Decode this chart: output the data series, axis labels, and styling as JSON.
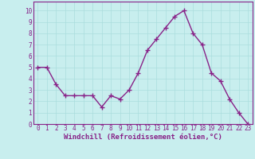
{
  "x": [
    0,
    1,
    2,
    3,
    4,
    5,
    6,
    7,
    8,
    9,
    10,
    11,
    12,
    13,
    14,
    15,
    16,
    17,
    18,
    19,
    20,
    21,
    22,
    23
  ],
  "y": [
    5,
    5,
    3.5,
    2.5,
    2.5,
    2.5,
    2.5,
    1.5,
    2.5,
    2.2,
    3,
    4.5,
    6.5,
    7.5,
    8.5,
    9.5,
    10,
    8,
    7,
    4.5,
    3.8,
    2.2,
    1,
    0
  ],
  "line_color": "#882288",
  "marker": "+",
  "marker_size": 4,
  "marker_lw": 1.0,
  "background_color": "#c8eeee",
  "grid_color": "#aadddd",
  "xlabel": "Windchill (Refroidissement éolien,°C)",
  "xlabel_fontsize": 6.5,
  "xlabel_fontweight": "bold",
  "ylabel_ticks": [
    0,
    1,
    2,
    3,
    4,
    5,
    6,
    7,
    8,
    9,
    10
  ],
  "xlim": [
    -0.5,
    23.5
  ],
  "ylim": [
    0,
    10.8
  ],
  "tick_fontsize": 5.5,
  "label_color": "#882288",
  "line_width": 1.0,
  "spine_color": "#882288"
}
